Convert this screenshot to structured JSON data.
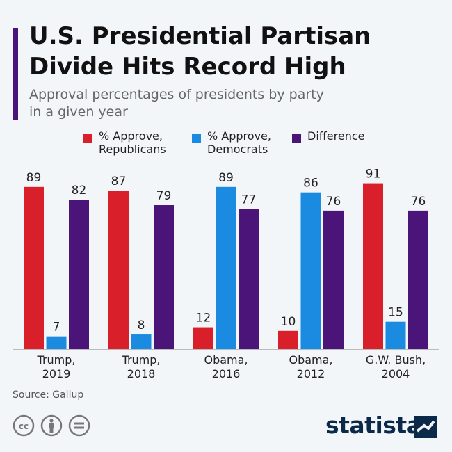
{
  "header": {
    "title_line1": "U.S. Presidential Partisan",
    "title_line2": "Divide Hits Record High",
    "subtitle_line1": "Approval percentages of presidents by party",
    "subtitle_line2": "in a given year"
  },
  "legend": [
    {
      "line1": "% Approve,",
      "line2": "Republicans",
      "color": "#d9202a"
    },
    {
      "line1": "% Approve,",
      "line2": "Democrats",
      "color": "#1a8be0"
    },
    {
      "line1": "Difference",
      "line2": "",
      "color": "#4a1479"
    }
  ],
  "chart_data": {
    "type": "bar",
    "categories": [
      [
        "Trump,",
        "2019"
      ],
      [
        "Trump,",
        "2018"
      ],
      [
        "Obama,",
        "2016"
      ],
      [
        "Obama,",
        "2012"
      ],
      [
        "G.W. Bush,",
        "2004"
      ]
    ],
    "series": [
      {
        "name": "% Approve, Republicans",
        "color": "#d9202a",
        "values": [
          89,
          87,
          12,
          10,
          91
        ]
      },
      {
        "name": "% Approve, Democrats",
        "color": "#1a8be0",
        "values": [
          7,
          8,
          89,
          86,
          15
        ]
      },
      {
        "name": "Difference",
        "color": "#4a1479",
        "values": [
          82,
          79,
          77,
          76,
          76
        ]
      }
    ],
    "ylim": [
      0,
      100
    ],
    "grid": false,
    "legend_position": "top"
  },
  "footer": {
    "source": "Source: Gallup",
    "brand": "statista",
    "icons": [
      "cc-icon",
      "attribution-icon",
      "no-derivatives-icon"
    ]
  }
}
